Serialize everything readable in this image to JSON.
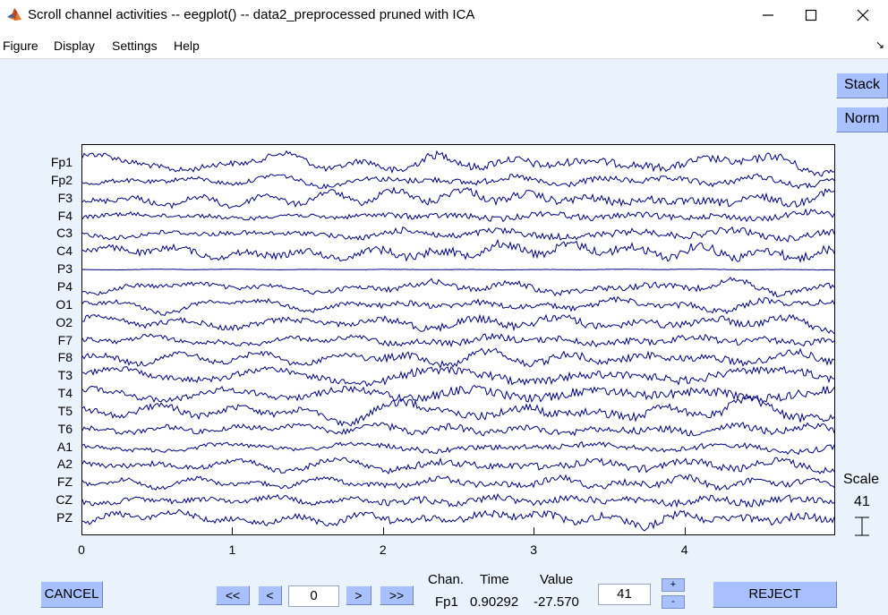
{
  "window": {
    "title": "Scroll channel activities -- eegplot() -- data2_preprocessed pruned with ICA",
    "app_icon": "matlab-icon",
    "controls": [
      "minimize-icon",
      "maximize-icon",
      "close-icon"
    ]
  },
  "menu": {
    "items": [
      "Figure",
      "Display",
      "Settings",
      "Help"
    ],
    "dock_glyph": "↘"
  },
  "side_buttons": {
    "stack": "Stack",
    "norm": "Norm"
  },
  "plot": {
    "channels": [
      "Fp1",
      "Fp2",
      "F3",
      "F4",
      "C3",
      "C4",
      "P3",
      "P4",
      "O1",
      "O2",
      "F7",
      "F8",
      "T3",
      "T4",
      "T5",
      "T6",
      "A1",
      "A2",
      "FZ",
      "CZ",
      "PZ"
    ],
    "x_ticks": [
      "0",
      "1",
      "2",
      "3",
      "4"
    ],
    "x_range": [
      0,
      5
    ],
    "trace_color": "#000080"
  },
  "scale": {
    "title": "Scale",
    "value": "41"
  },
  "controls": {
    "cancel": "CANCEL",
    "first": "<<",
    "prev": "<",
    "position": "0",
    "next": ">",
    "last": ">>",
    "scale_input": "41",
    "increase": "+",
    "decrease": "-",
    "reject": "REJECT"
  },
  "readout": {
    "chan_label": "Chan.",
    "time_label": "Time",
    "value_label": "Value",
    "chan": "Fp1",
    "time": "0.90292",
    "value": "-27.570"
  },
  "colors": {
    "button": "#a8c0fe",
    "background": "#eaf2fc",
    "trace": "#000080"
  }
}
